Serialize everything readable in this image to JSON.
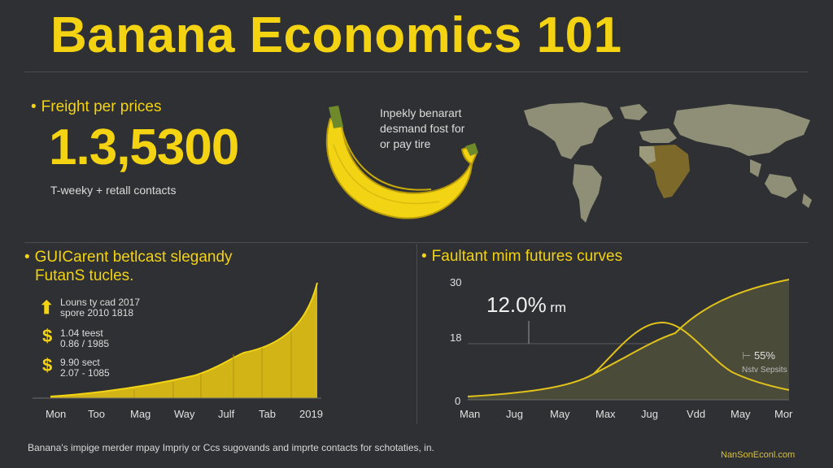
{
  "title": "Banana Economics 101",
  "top_left": {
    "heading": "Freight per prices",
    "big_number": "1.3,5300",
    "caption": "T-weeky + retall contacts"
  },
  "banana_note": {
    "lines": [
      "Inpekly benarart",
      "desmand fost for",
      "or pay tire"
    ]
  },
  "left_chart": {
    "heading_line1": "GUICarent betlcast slegandy",
    "heading_line2": "FutanS tucles.",
    "legend": [
      {
        "icon": "up-arrow-icon",
        "line1": "Louns ty cad 2017",
        "line2": "spore 2010 1818"
      },
      {
        "icon": "dollar-icon",
        "line1": "1.04 teest",
        "line2": "0.86 / 1985"
      },
      {
        "icon": "dollar-icon",
        "line1": "9.90 sect",
        "line2": "2.07 - 1085"
      }
    ],
    "x_labels": [
      "Mon",
      "Too",
      "Mag",
      "Way",
      "Julf",
      "Tab",
      "2019"
    ],
    "color": "#e6c619"
  },
  "right_chart": {
    "heading": "Faultant mim futures curves",
    "y_labels": [
      "30",
      "18",
      "0"
    ],
    "x_labels": [
      "Man",
      "Jug",
      "May",
      "Max",
      "Jug",
      "Vdd",
      "May",
      "Mor"
    ],
    "annotation_value": "12.0%",
    "annotation_unit": "rm",
    "side_value": "55%",
    "side_label": "Nstv Sepsits",
    "color": "#e6c619"
  },
  "footer": {
    "text": "Banana's impige merder mpay Impriy or Ccs sugovands and imprte contacts for schotaties, in.",
    "brand": "NanSonEconl.com"
  }
}
